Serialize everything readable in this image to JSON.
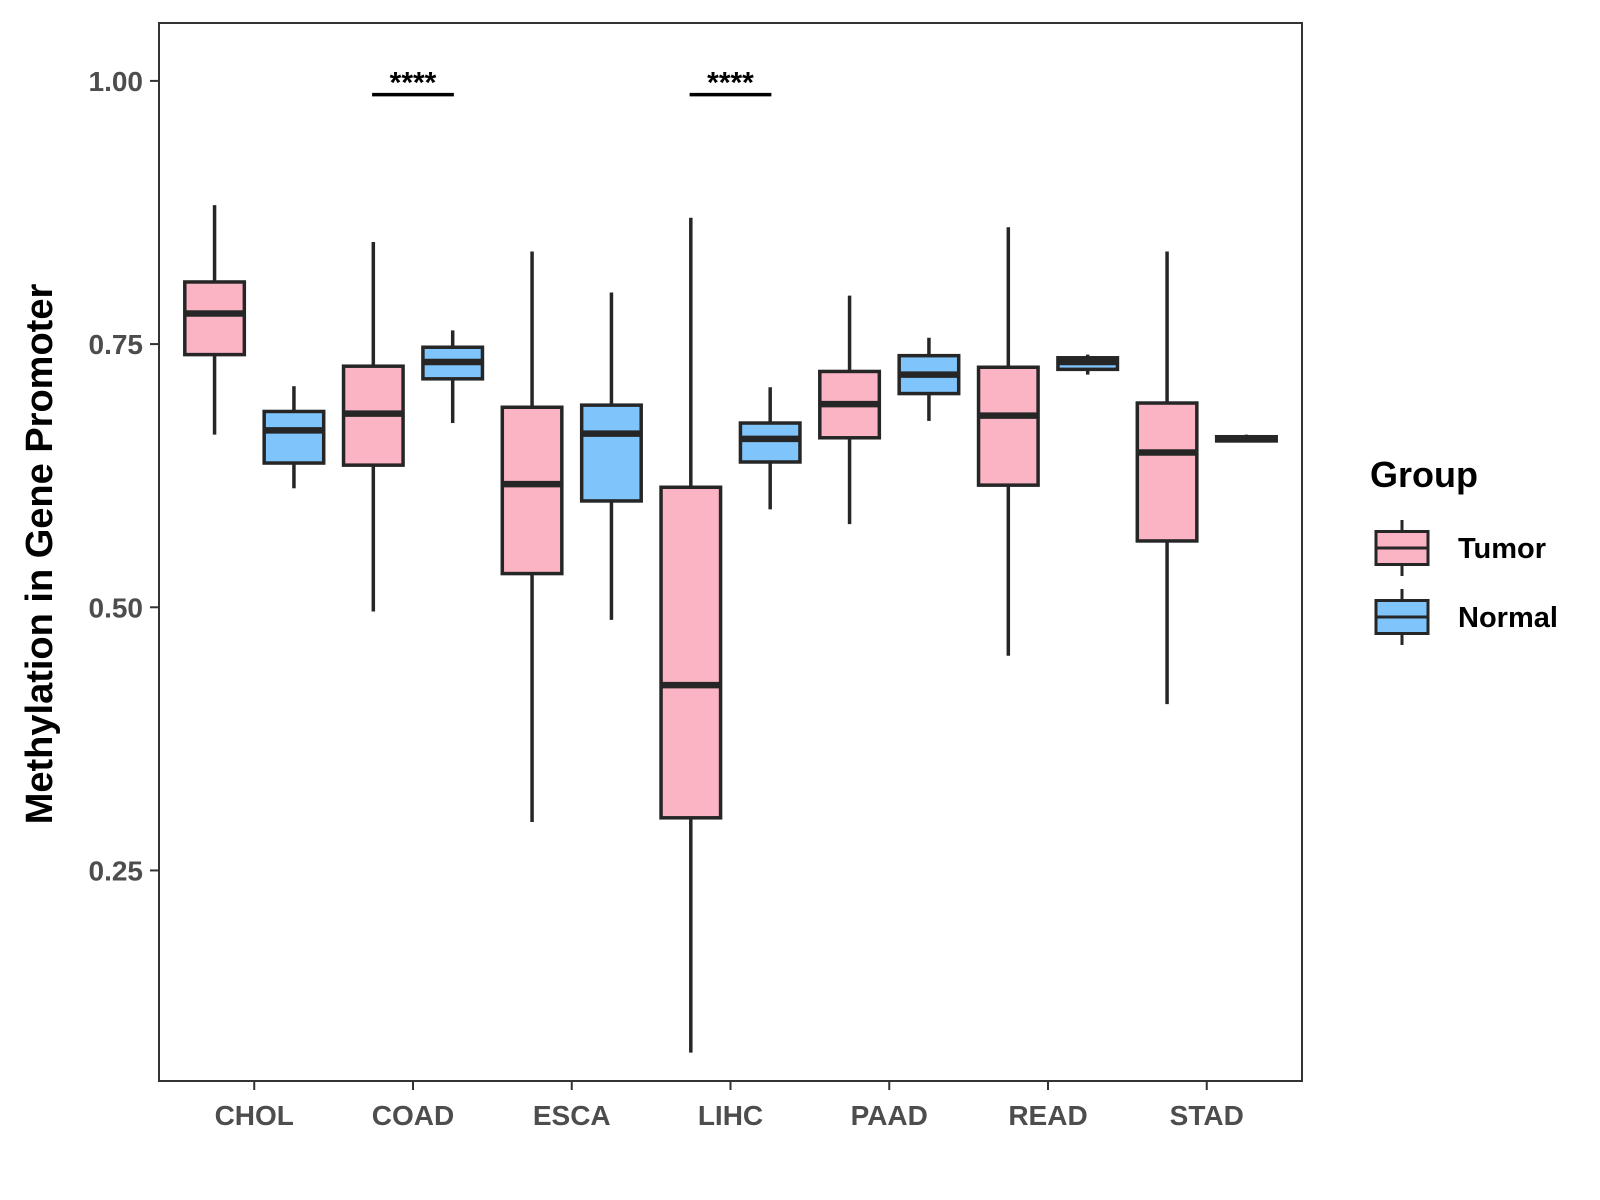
{
  "chart_data": {
    "type": "boxplot",
    "ylabel": "Methylation in Gene Promoter",
    "xlabel": "",
    "ylim": [
      0.05,
      1.055
    ],
    "yticks": [
      0.25,
      0.5,
      0.75,
      1.0
    ],
    "ytick_labels": [
      "0.25",
      "0.50",
      "0.75",
      "1.00"
    ],
    "grid": false,
    "legend": {
      "title": "Group",
      "position": "right",
      "entries": [
        {
          "name": "Tumor",
          "color": "#fbb4c4"
        },
        {
          "name": "Normal",
          "color": "#7fc4fb"
        }
      ]
    },
    "categories": [
      "CHOL",
      "COAD",
      "ESCA",
      "LIHC",
      "PAAD",
      "READ",
      "STAD"
    ],
    "series": [
      {
        "name": "Tumor",
        "color": "#fbb4c4",
        "boxes": [
          {
            "category": "CHOL",
            "min": 0.664,
            "q1": 0.74,
            "median": 0.779,
            "q3": 0.809,
            "max": 0.882
          },
          {
            "category": "COAD",
            "min": 0.496,
            "q1": 0.635,
            "median": 0.684,
            "q3": 0.729,
            "max": 0.847
          },
          {
            "category": "ESCA",
            "min": 0.296,
            "q1": 0.532,
            "median": 0.617,
            "q3": 0.69,
            "max": 0.838
          },
          {
            "category": "LIHC",
            "min": 0.077,
            "q1": 0.3,
            "median": 0.426,
            "q3": 0.614,
            "max": 0.87
          },
          {
            "category": "PAAD",
            "min": 0.579,
            "q1": 0.661,
            "median": 0.693,
            "q3": 0.724,
            "max": 0.796
          },
          {
            "category": "READ",
            "min": 0.454,
            "q1": 0.616,
            "median": 0.682,
            "q3": 0.728,
            "max": 0.861
          },
          {
            "category": "STAD",
            "min": 0.408,
            "q1": 0.563,
            "median": 0.647,
            "q3": 0.694,
            "max": 0.838
          }
        ]
      },
      {
        "name": "Normal",
        "color": "#7fc4fb",
        "boxes": [
          {
            "category": "CHOL",
            "min": 0.613,
            "q1": 0.637,
            "median": 0.668,
            "q3": 0.686,
            "max": 0.71
          },
          {
            "category": "COAD",
            "min": 0.675,
            "q1": 0.717,
            "median": 0.733,
            "q3": 0.747,
            "max": 0.763
          },
          {
            "category": "ESCA",
            "min": 0.488,
            "q1": 0.601,
            "median": 0.665,
            "q3": 0.692,
            "max": 0.799
          },
          {
            "category": "LIHC",
            "min": 0.593,
            "q1": 0.638,
            "median": 0.66,
            "q3": 0.675,
            "max": 0.709
          },
          {
            "category": "PAAD",
            "min": 0.677,
            "q1": 0.703,
            "median": 0.721,
            "q3": 0.739,
            "max": 0.756
          },
          {
            "category": "READ",
            "min": 0.721,
            "q1": 0.726,
            "median": 0.733,
            "q3": 0.737,
            "max": 0.74
          },
          {
            "category": "STAD",
            "min": 0.658,
            "q1": 0.658,
            "median": 0.66,
            "q3": 0.662,
            "max": 0.664
          }
        ]
      }
    ],
    "annotations": [
      {
        "category": "COAD",
        "label": "****",
        "y": 0.987
      },
      {
        "category": "LIHC",
        "label": "****",
        "y": 0.987
      }
    ]
  }
}
